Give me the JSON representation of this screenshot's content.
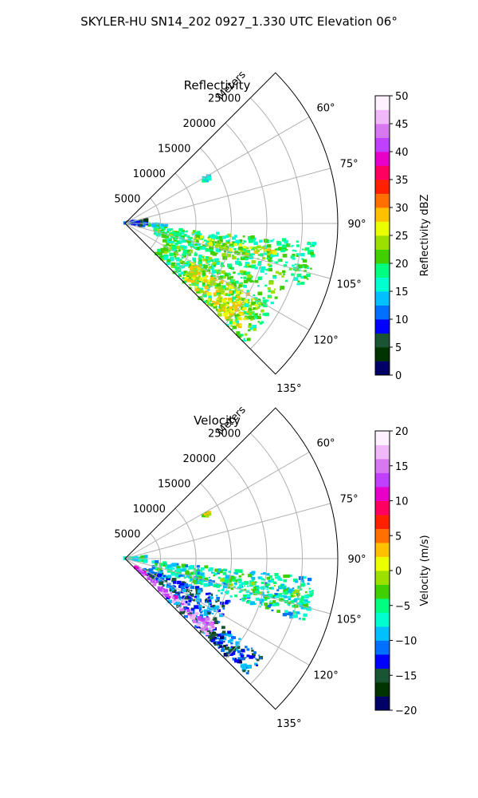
{
  "figure": {
    "title": "SKYLER-HU  SN14_202  0927_1.330 UTC Elevation 06°"
  },
  "chart_data": [
    {
      "type": "polar-sector",
      "title": "Reflectivity",
      "r_label": "Meters",
      "r_ticks": [
        "5000",
        "10000",
        "15000",
        "20000",
        "25000"
      ],
      "r_tick_values": [
        5000,
        10000,
        15000,
        20000,
        25000
      ],
      "rlim": [
        0,
        30000
      ],
      "theta_ticks": [
        "60°",
        "75°",
        "90°",
        "105°",
        "120°",
        "135°"
      ],
      "theta_tick_values": [
        60,
        75,
        90,
        105,
        120,
        135
      ],
      "theta_range": [
        45,
        135
      ],
      "grid": true,
      "colorbar": {
        "label": "Reflectivity dBZ",
        "ticks": [
          "0",
          "5",
          "10",
          "15",
          "20",
          "25",
          "30",
          "35",
          "40",
          "45",
          "50"
        ],
        "range": [
          0,
          50
        ],
        "colors": [
          "#000066",
          "#003300",
          "#1a5533",
          "#0000ff",
          "#0070ff",
          "#00c0ff",
          "#00ffd0",
          "#00ff80",
          "#40d000",
          "#9be000",
          "#eaff00",
          "#ffc000",
          "#ff7000",
          "#ff2000",
          "#ff0060",
          "#e800c8",
          "#c040ff",
          "#d878f0",
          "#f0b8f8",
          "#fff0ff"
        ]
      },
      "echoes": [
        {
          "az": [
            112,
            135
          ],
          "r": [
            6000,
            24000
          ],
          "value": 20
        },
        {
          "az": [
            96,
            110
          ],
          "r": [
            4000,
            27000
          ],
          "value": 19
        },
        {
          "az": [
            100,
            105
          ],
          "r": [
            10000,
            22000
          ],
          "value": 25
        },
        {
          "az": [
            120,
            133
          ],
          "r": [
            11000,
            22000
          ],
          "value": 26
        },
        {
          "az": [
            90,
            96
          ],
          "r": [
            3000,
            6000
          ],
          "value": 17
        },
        {
          "az": [
            80,
            100
          ],
          "r": [
            0,
            3000
          ],
          "value": 8
        },
        {
          "az": [
            60,
            63
          ],
          "r": [
            12500,
            13500
          ],
          "value": 16
        }
      ]
    },
    {
      "type": "polar-sector",
      "title": "Velocity",
      "r_label": "Meters",
      "r_ticks": [
        "5000",
        "10000",
        "15000",
        "20000",
        "25000"
      ],
      "r_tick_values": [
        5000,
        10000,
        15000,
        20000,
        25000
      ],
      "rlim": [
        0,
        30000
      ],
      "theta_ticks": [
        "60°",
        "75°",
        "90°",
        "105°",
        "120°",
        "135°"
      ],
      "theta_tick_values": [
        60,
        75,
        90,
        105,
        120,
        135
      ],
      "theta_range": [
        45,
        135
      ],
      "grid": true,
      "colorbar": {
        "label": "Velocity (m/s)",
        "ticks": [
          "−20",
          "−15",
          "−10",
          "−5",
          "0",
          "5",
          "10",
          "15",
          "20"
        ],
        "range": [
          -20,
          20
        ],
        "colors": [
          "#000066",
          "#003300",
          "#1a5533",
          "#0000ff",
          "#0070ff",
          "#00c0ff",
          "#00ffd0",
          "#00ff80",
          "#40d000",
          "#9be000",
          "#eaff00",
          "#ffc000",
          "#ff7000",
          "#ff2000",
          "#ff0060",
          "#e800c8",
          "#c040ff",
          "#d878f0",
          "#f0b8f8",
          "#fff0ff"
        ]
      },
      "echoes": [
        {
          "az": [
            96,
            110
          ],
          "r": [
            4000,
            27000
          ],
          "value": -7
        },
        {
          "az": [
            100,
            106
          ],
          "r": [
            14000,
            27000
          ],
          "value": -5
        },
        {
          "az": [
            112,
            126
          ],
          "r": [
            3000,
            16000
          ],
          "value": -12
        },
        {
          "az": [
            125,
            134
          ],
          "r": [
            8000,
            24000
          ],
          "value": -12
        },
        {
          "az": [
            126,
            133
          ],
          "r": [
            2000,
            16000
          ],
          "value": 15
        },
        {
          "az": [
            129,
            134
          ],
          "r": [
            16000,
            22000
          ],
          "value": -15
        },
        {
          "az": [
            85,
            100
          ],
          "r": [
            0,
            3000
          ],
          "value": -6
        },
        {
          "az": [
            60,
            63
          ],
          "r": [
            12500,
            13500
          ],
          "value": 0
        }
      ]
    }
  ]
}
